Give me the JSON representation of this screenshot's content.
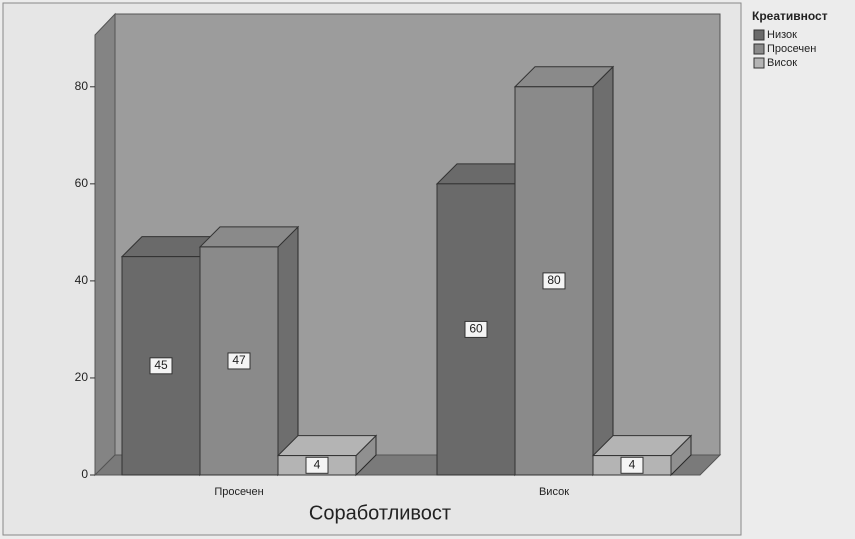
{
  "chart_data": {
    "type": "bar3d",
    "x_label": "Соработливост",
    "legend_title": "Креативност",
    "categories": [
      "Просечен",
      "Висок"
    ],
    "series": [
      {
        "name": "Низок",
        "color": "#6a6a6a",
        "values": [
          45,
          60
        ]
      },
      {
        "name": "Просечен",
        "color": "#8a8a8a",
        "values": [
          47,
          80
        ]
      },
      {
        "name": "Висок",
        "color": "#b4b4b4",
        "values": [
          4,
          4
        ]
      }
    ],
    "ylim": [
      0,
      95
    ],
    "yticks": [
      0,
      20,
      40,
      60,
      80
    ],
    "legend": "right"
  }
}
